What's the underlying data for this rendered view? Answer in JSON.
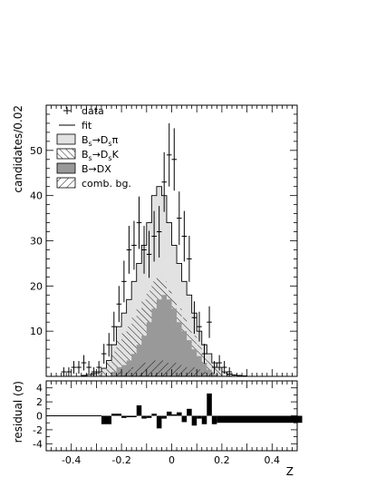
{
  "chart_data": [
    {
      "type": "histogram",
      "panel": "main",
      "xlabel": "Z",
      "ylabel": "candidates/0.02",
      "xlim": [
        -0.5,
        0.5
      ],
      "ylim": [
        0,
        60
      ],
      "yticks": [
        10,
        20,
        30,
        40,
        50
      ],
      "grid": false,
      "legend_placement": "top-left",
      "legend": [
        {
          "label": "data",
          "style": "marker"
        },
        {
          "label": "fit",
          "style": "line"
        },
        {
          "label": "Bs→Dsπ",
          "style": "fill",
          "main": "B",
          "sub1": "s",
          "arrow": "→D",
          "sub2": "s",
          "tail": "π",
          "fill": "#e2e2e2"
        },
        {
          "label": "Bs→DsK",
          "style": "hatch",
          "main": "B",
          "sub1": "s",
          "arrow": "→D",
          "sub2": "s",
          "tail": "K",
          "hatch": "back"
        },
        {
          "label": "B→DX",
          "style": "fill",
          "fill": "#999999"
        },
        {
          "label": "comb. bg.",
          "style": "hatch",
          "hatch": "forward"
        }
      ],
      "bin_width": 0.02,
      "x_bin_low_edges": [
        -0.5,
        -0.48,
        -0.46,
        -0.44,
        -0.42,
        -0.4,
        -0.38,
        -0.36,
        -0.34,
        -0.32,
        -0.3,
        -0.28,
        -0.26,
        -0.24,
        -0.22,
        -0.2,
        -0.18,
        -0.16,
        -0.14,
        -0.12,
        -0.1,
        -0.08,
        -0.06,
        -0.04,
        -0.02,
        0.0,
        0.02,
        0.04,
        0.06,
        0.08,
        0.1,
        0.12,
        0.14,
        0.16,
        0.18,
        0.2,
        0.22,
        0.24,
        0.26,
        0.28,
        0.3,
        0.32,
        0.34,
        0.36,
        0.38,
        0.4,
        0.42,
        0.44,
        0.46,
        0.48
      ],
      "series": [
        {
          "name": "fit",
          "values": [
            0,
            0,
            0,
            0,
            0,
            0,
            0,
            0.2,
            0.4,
            0.6,
            1.0,
            1.8,
            3.5,
            7,
            11,
            14,
            17,
            21,
            25,
            29,
            34,
            40,
            42,
            40,
            34,
            29,
            25,
            21,
            18,
            14,
            10,
            7,
            5,
            3,
            2,
            1,
            0.5,
            0.3,
            0.2,
            0.1,
            0,
            0,
            0,
            0,
            0,
            0,
            0,
            0,
            0,
            0
          ]
        },
        {
          "name": "Bs→DsK",
          "values": [
            0,
            0,
            0,
            0,
            0,
            0,
            0,
            0.2,
            0.3,
            0.5,
            0.8,
            1.5,
            3,
            5.5,
            8,
            9.5,
            11,
            13,
            15,
            17,
            19,
            21,
            22,
            21,
            19,
            17,
            15,
            13,
            11,
            9,
            7,
            5,
            3.5,
            2.5,
            1.5,
            0.8,
            0.4,
            0.2,
            0.1,
            0,
            0,
            0,
            0,
            0,
            0,
            0,
            0,
            0,
            0,
            0
          ]
        },
        {
          "name": "B→DX",
          "values": [
            0,
            0,
            0,
            0,
            0,
            0,
            0,
            0,
            0,
            0,
            0,
            0,
            0,
            1,
            2,
            2.5,
            3.5,
            5,
            7,
            9,
            12,
            15,
            17,
            18,
            17,
            15,
            12,
            10,
            8,
            6,
            4.5,
            3,
            1.5,
            0.5,
            0,
            0,
            0,
            0,
            0,
            0,
            0,
            0,
            0,
            0,
            0,
            0,
            0,
            0,
            0,
            0
          ]
        },
        {
          "name": "comb. bg.",
          "values": [
            0,
            0,
            0,
            0,
            0,
            0,
            0,
            0,
            0,
            0,
            0,
            0,
            0,
            0.5,
            1,
            1,
            1.5,
            2,
            2.5,
            3,
            3,
            3.5,
            3.5,
            3.5,
            3,
            3,
            2.5,
            2.5,
            2,
            2,
            1.5,
            1,
            1,
            0.5,
            0.5,
            0,
            0,
            0,
            0,
            0,
            0,
            0,
            0,
            0,
            0,
            0,
            0,
            0,
            0,
            0
          ]
        },
        {
          "name": "data",
          "x": [
            -0.43,
            -0.41,
            -0.39,
            -0.37,
            -0.35,
            -0.33,
            -0.31,
            -0.29,
            -0.27,
            -0.25,
            -0.23,
            -0.21,
            -0.19,
            -0.17,
            -0.15,
            -0.13,
            -0.11,
            -0.09,
            -0.07,
            -0.05,
            -0.03,
            -0.01,
            0.01,
            0.03,
            0.05,
            0.07,
            0.09,
            0.11,
            0.13,
            0.15,
            0.17,
            0.19,
            0.21,
            0.23
          ],
          "y": [
            1,
            1,
            2,
            2,
            3,
            2,
            1,
            2,
            5,
            7,
            11,
            16,
            21,
            28,
            29,
            34,
            28,
            27,
            31,
            32,
            43,
            49,
            48,
            35,
            31,
            26,
            13,
            11,
            5,
            12,
            2,
            3,
            2,
            1
          ],
          "yerr": [
            1,
            1,
            1.4,
            1.4,
            1.7,
            1.4,
            1,
            1.4,
            2.2,
            2.6,
            3.3,
            4,
            4.6,
            5.3,
            5.4,
            5.8,
            5.3,
            5.2,
            5.6,
            5.7,
            6.6,
            7,
            6.9,
            5.9,
            5.6,
            5.1,
            3.6,
            3.3,
            2.2,
            3.5,
            1.4,
            1.7,
            1.4,
            1
          ]
        }
      ]
    },
    {
      "type": "bar",
      "panel": "residual",
      "xlabel": "Z",
      "ylabel": "residual (σ)",
      "xlim": [
        -0.5,
        0.5
      ],
      "ylim": [
        -5,
        5
      ],
      "yticks": [
        -4,
        -2,
        0,
        2,
        4
      ],
      "xticks": [
        -0.4,
        -0.2,
        0,
        0.2,
        0.4
      ],
      "xtick_labels": [
        "-0.4",
        "-0.2",
        "0",
        "0.2",
        "0.4"
      ],
      "bins": [
        {
          "x0": -0.28,
          "x1": -0.24,
          "v": -1.2
        },
        {
          "x0": -0.24,
          "x1": -0.2,
          "v": 0.3
        },
        {
          "x0": -0.2,
          "x1": -0.18,
          "v": -0.3
        },
        {
          "x0": -0.18,
          "x1": -0.14,
          "v": -0.2
        },
        {
          "x0": -0.14,
          "x1": -0.12,
          "v": 1.5
        },
        {
          "x0": -0.12,
          "x1": -0.1,
          "v": -0.4
        },
        {
          "x0": -0.1,
          "x1": -0.08,
          "v": -0.3
        },
        {
          "x0": -0.08,
          "x1": -0.06,
          "v": 0.3
        },
        {
          "x0": -0.06,
          "x1": -0.04,
          "v": -1.8
        },
        {
          "x0": -0.04,
          "x1": -0.02,
          "v": -0.4
        },
        {
          "x0": -0.02,
          "x1": 0.0,
          "v": 0.6
        },
        {
          "x0": 0.0,
          "x1": 0.02,
          "v": 0.2
        },
        {
          "x0": 0.02,
          "x1": 0.04,
          "v": 0.5
        },
        {
          "x0": 0.04,
          "x1": 0.06,
          "v": -0.9
        },
        {
          "x0": 0.06,
          "x1": 0.08,
          "v": 1.0
        },
        {
          "x0": 0.08,
          "x1": 0.1,
          "v": -1.4
        },
        {
          "x0": 0.1,
          "x1": 0.12,
          "v": -0.4
        },
        {
          "x0": 0.12,
          "x1": 0.14,
          "v": -1.2
        },
        {
          "x0": 0.14,
          "x1": 0.16,
          "v": 3.2
        },
        {
          "x0": 0.16,
          "x1": 0.18,
          "v": -1.2
        },
        {
          "x0": 0.18,
          "x1": 0.52,
          "v": -1.0
        }
      ]
    }
  ]
}
